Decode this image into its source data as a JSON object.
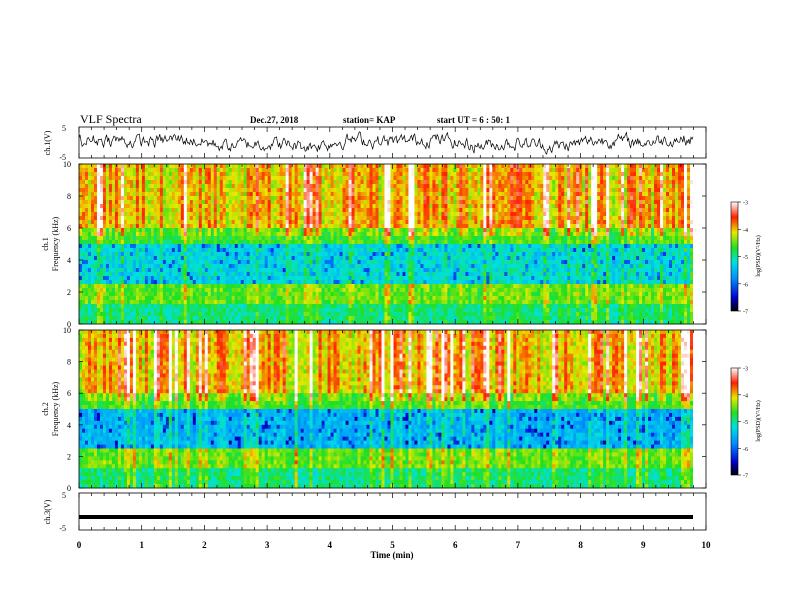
{
  "header": {
    "title": "VLF Spectra",
    "date": "Dec.27, 2018",
    "station": "station= KAP",
    "start": "start  UT =  6 : 50: 1"
  },
  "colorscale": [
    {
      "stop": 0.0,
      "color": "#000000"
    },
    {
      "stop": 0.12,
      "color": "#0000cc"
    },
    {
      "stop": 0.3,
      "color": "#0090ff"
    },
    {
      "stop": 0.45,
      "color": "#00e0e0"
    },
    {
      "stop": 0.58,
      "color": "#20e020"
    },
    {
      "stop": 0.72,
      "color": "#e8e800"
    },
    {
      "stop": 0.86,
      "color": "#ff2000"
    },
    {
      "stop": 1.0,
      "color": "#ffffff"
    }
  ],
  "chart_data": [
    {
      "type": "line",
      "panel": "ch1-waveform",
      "ylabel": "ch.1(V)",
      "ytick_labels": [
        "5",
        "-5"
      ],
      "ylim": [
        -5,
        5
      ],
      "xlim": [
        0,
        10
      ],
      "color": "#000000"
    },
    {
      "type": "heatmap",
      "panel": "ch1-spectrogram",
      "ylabel": "ch.1\nFrequency  (kHz)",
      "ylim": [
        0,
        10
      ],
      "xlim": [
        0,
        10
      ],
      "ytick_labels": [
        "0",
        "2",
        "4",
        "6",
        "8",
        "10"
      ],
      "colorbar": {
        "label": "log(PSD)(V²/Hz)",
        "range": [
          -7,
          -3
        ],
        "tick_labels": [
          "-3",
          "-4",
          "-5",
          "-6",
          "-7"
        ]
      }
    },
    {
      "type": "heatmap",
      "panel": "ch2-spectrogram",
      "ylabel": "ch.2\nFrequency  (kHz)",
      "ylim": [
        0,
        10
      ],
      "xlim": [
        0,
        10
      ],
      "ytick_labels": [
        "0",
        "2",
        "4",
        "6",
        "8",
        "10"
      ],
      "colorbar": {
        "label": "log(PSD)(V²/Hz)",
        "range": [
          -7,
          -3
        ],
        "tick_labels": [
          "-3",
          "-4",
          "-5",
          "-6",
          "-7"
        ]
      }
    },
    {
      "type": "line",
      "panel": "ch3-waveform",
      "ylabel": "ch.3(V)",
      "ytick_labels": [
        "5",
        "-5"
      ],
      "ylim": [
        -5,
        5
      ],
      "xlim": [
        0,
        10
      ],
      "constant_value": -1.5,
      "color": "#000000"
    }
  ],
  "xaxis": {
    "label": "Time  (min)",
    "range": [
      0,
      10
    ],
    "tick_labels": [
      "0",
      "1",
      "2",
      "3",
      "4",
      "5",
      "6",
      "7",
      "8",
      "9",
      "10"
    ]
  }
}
